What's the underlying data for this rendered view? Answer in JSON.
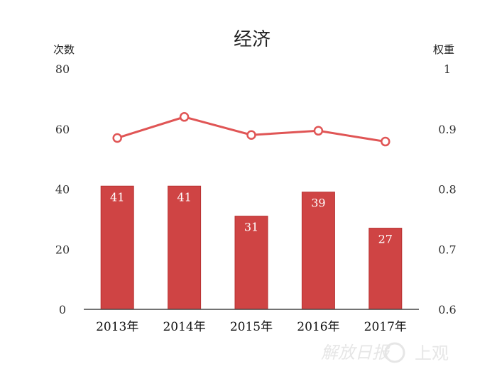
{
  "chart_data": {
    "type": "bar+line",
    "title": "经济",
    "categories": [
      "2013年",
      "2014年",
      "2015年",
      "2016年",
      "2017年"
    ],
    "series": [
      {
        "name": "次数",
        "type": "bar",
        "axis": "left",
        "values": [
          41,
          41,
          31,
          39,
          27
        ]
      },
      {
        "name": "权重",
        "type": "line",
        "axis": "right",
        "values": [
          0.885,
          0.92,
          0.89,
          0.897,
          0.879
        ]
      }
    ],
    "ylabel_left": "次数",
    "ylabel_right": "权重",
    "ylim_left": [
      0,
      80
    ],
    "ylim_right": [
      0.6,
      1
    ],
    "yticks_left": [
      "0",
      "20",
      "40",
      "60",
      "80"
    ],
    "yticks_right": [
      "0.6",
      "0.7",
      "0.8",
      "0.9",
      "1"
    ],
    "colors": {
      "bar": "#cf4444",
      "bar_edge": "#b73131",
      "line": "#e05555",
      "marker_fill": "#ffffff"
    },
    "grid": false
  },
  "watermark": {
    "left_text": "解放日报",
    "right_text": "上观"
  }
}
